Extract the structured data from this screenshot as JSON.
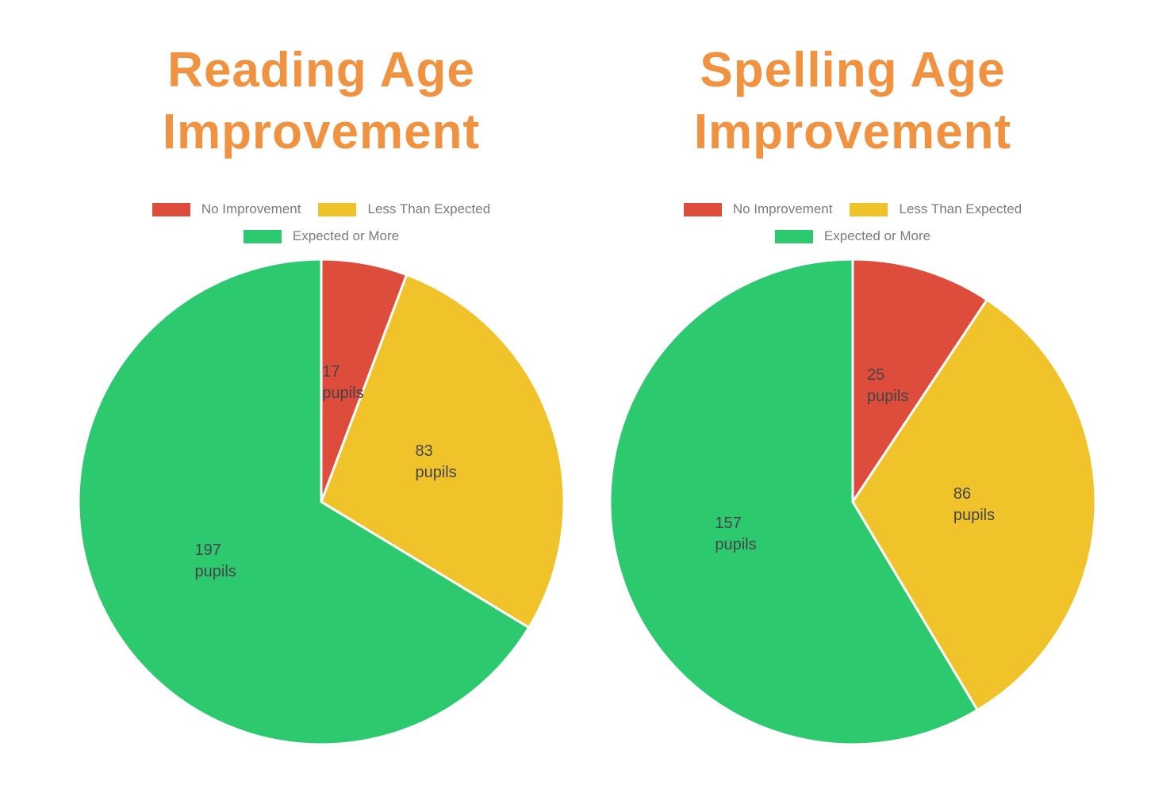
{
  "page": {
    "background": "#FFFFFF"
  },
  "styles": {
    "title_color": "#F0923F",
    "legend_text_color": "#7B7B7B",
    "slice_label_color": "#454545",
    "slice_border_color": "#FFFFFF"
  },
  "chart_data": [
    {
      "type": "pie",
      "title": "Reading Age Improvement",
      "title_lines": [
        "Reading Age",
        "Improvement"
      ],
      "legend_position": "top",
      "start_angle_deg": 0,
      "direction": "clockwise",
      "unit": "pupils",
      "labels": [
        "No Improvement",
        "Less Than Expected",
        "Expected or More"
      ],
      "values": [
        17,
        83,
        197
      ],
      "colors": [
        "#DE4C3C",
        "#F0C32A",
        "#2CC96F"
      ],
      "slice_labels": [
        [
          "17",
          "pupils"
        ],
        [
          "83",
          "pupils"
        ],
        [
          "197",
          "pupils"
        ]
      ]
    },
    {
      "type": "pie",
      "title": "Spelling Age Improvement",
      "title_lines": [
        "Spelling Age",
        "Improvement"
      ],
      "legend_position": "top",
      "start_angle_deg": 0,
      "direction": "clockwise",
      "unit": "pupils",
      "labels": [
        "No Improvement",
        "Less Than Expected",
        "Expected or More"
      ],
      "values": [
        25,
        86,
        157
      ],
      "colors": [
        "#DE4C3C",
        "#F0C32A",
        "#2CC96F"
      ],
      "slice_labels": [
        [
          "25",
          "pupils"
        ],
        [
          "86",
          "pupils"
        ],
        [
          "157",
          "pupils"
        ]
      ]
    }
  ]
}
